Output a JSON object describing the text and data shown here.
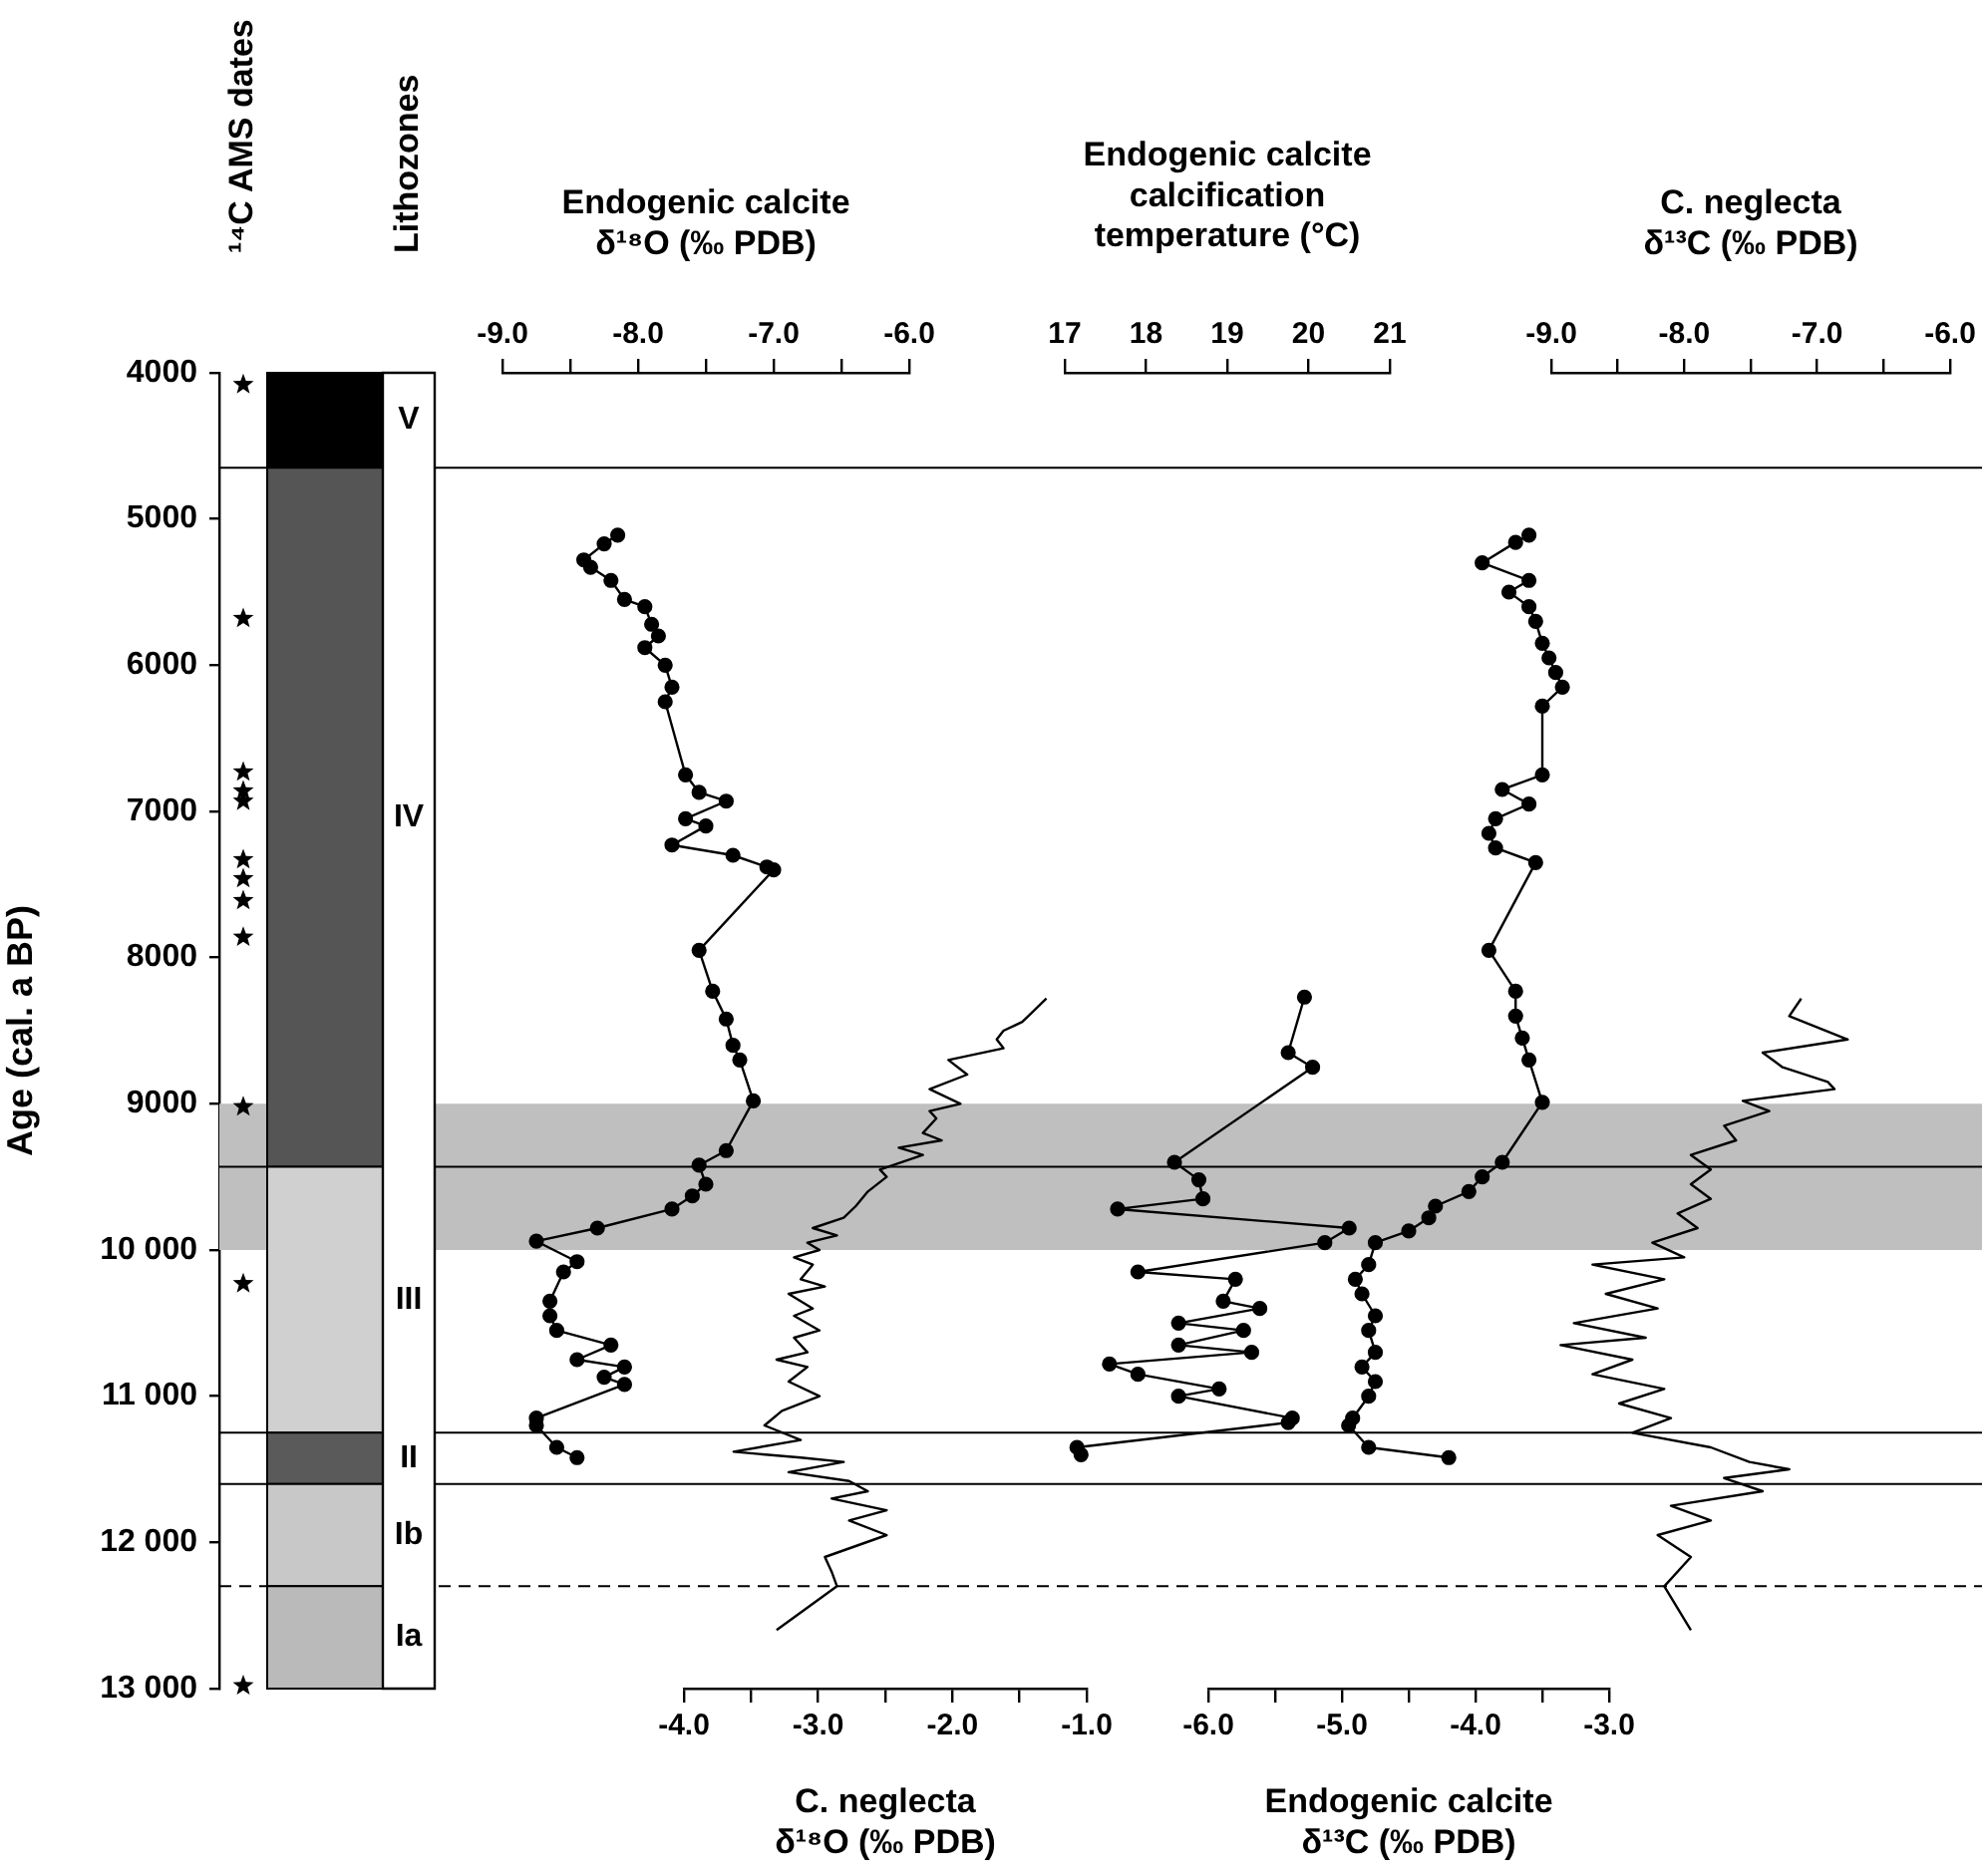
{
  "chart_data": [
    {
      "type": "scatter",
      "marker": "star",
      "categories": [
        "¹⁴C AMS dates"
      ],
      "ylabel": "Age (cal. a BP)",
      "ylim": [
        13000,
        4000
      ],
      "yticks": [
        4000,
        5000,
        6000,
        7000,
        8000,
        9000,
        {
          "value": 10000,
          "label": "10 000"
        },
        {
          "value": 11000,
          "label": "11 000"
        },
        {
          "value": 12000,
          "label": "12 000"
        },
        {
          "value": 13000,
          "label": "13 000"
        }
      ],
      "series": [
        {
          "color": "#000000",
          "x": [
            "¹⁴C AMS dates",
            "¹⁴C AMS dates",
            "¹⁴C AMS dates",
            "¹⁴C AMS dates",
            "¹⁴C AMS dates",
            "¹⁴C AMS dates",
            "¹⁴C AMS dates",
            "¹⁴C AMS dates",
            "¹⁴C AMS dates",
            "¹⁴C AMS dates",
            "¹⁴C AMS dates",
            "¹⁴C AMS dates"
          ],
          "values": [
            4080,
            5680,
            6730,
            6860,
            6930,
            7330,
            7460,
            7610,
            7860,
            9020,
            10230,
            12980
          ]
        }
      ],
      "annotations": [
        "Lithozones"
      ],
      "bands": [
        {
          "axis": "y",
          "from": 4000,
          "to": 4650,
          "label": "V",
          "color": "#000000"
        },
        {
          "axis": "y",
          "from": 4650,
          "to": 9430,
          "label": "IV",
          "color": "#555555"
        },
        {
          "axis": "y",
          "from": 9430,
          "to": 11250,
          "label": "III",
          "color": "#d0d0d0"
        },
        {
          "axis": "y",
          "from": 11250,
          "to": 11600,
          "label": "II",
          "color": "#5a5a5a"
        },
        {
          "axis": "y",
          "from": 11600,
          "to": 12300,
          "label": "Ib",
          "color": "#c8c8c8"
        },
        {
          "axis": "y",
          "from": 12300,
          "to": 13000,
          "label": "Ia",
          "color": "#bababa"
        },
        {
          "axis": "y",
          "from": 9000,
          "to": 10000,
          "color": "#bfbfbf"
        }
      ],
      "ref_lines": [
        {
          "axis": "y",
          "value": 4650
        },
        {
          "axis": "y",
          "value": 9430
        },
        {
          "axis": "y",
          "value": 11250
        },
        {
          "axis": "y",
          "value": 11600
        },
        {
          "axis": "y",
          "value": 12300,
          "line_style": "dashed"
        }
      ]
    },
    {
      "type": "line",
      "orientation": "horizontal",
      "marker": "circle",
      "tick_labels": "x",
      "x2label": "Endogenic calcite\nδ¹⁸O (‰ PDB)",
      "x2lim": [
        -9,
        -6
      ],
      "x2ticks": [
        {
          "value": -9,
          "label": "-9.0"
        },
        {
          "value": -8.5,
          "label": null
        },
        {
          "value": -8,
          "label": "-8.0"
        },
        {
          "value": -7.5,
          "label": null
        },
        {
          "value": -7,
          "label": "-7.0"
        },
        {
          "value": -6.5,
          "label": null
        },
        {
          "value": -6,
          "label": "-6.0"
        }
      ],
      "ylim": [
        13000,
        4000
      ],
      "x": [
        5110,
        5170,
        5280,
        5330,
        5420,
        5550,
        5600,
        5720,
        5800,
        5880,
        6000,
        6150,
        6250,
        6750,
        6870,
        6930,
        7050,
        7100,
        7230,
        7300,
        7380,
        7400,
        7950,
        8230,
        8420,
        8600,
        8700,
        8980,
        9320,
        9420,
        9550,
        9630,
        9720,
        9850,
        9940,
        10080,
        10150,
        10350,
        10450,
        10550,
        10650,
        10750,
        10800,
        10870,
        10920,
        11150,
        11200,
        11350,
        11420
      ],
      "series": [
        {
          "axis": "x2",
          "color": "#000000",
          "values": [
            -8.15,
            -8.25,
            -8.4,
            -8.35,
            -8.2,
            -8.1,
            -7.95,
            -7.9,
            -7.85,
            -7.95,
            -7.8,
            -7.75,
            -7.8,
            -7.65,
            -7.55,
            -7.35,
            -7.65,
            -7.5,
            -7.75,
            -7.3,
            -7.05,
            -7.0,
            -7.55,
            -7.45,
            -7.35,
            -7.3,
            -7.25,
            -7.15,
            -7.35,
            -7.55,
            -7.5,
            -7.6,
            -7.75,
            -8.3,
            -8.75,
            -8.45,
            -8.55,
            -8.65,
            -8.65,
            -8.6,
            -8.2,
            -8.45,
            -8.1,
            -8.25,
            -8.1,
            -8.75,
            -8.75,
            -8.6,
            -8.45
          ]
        }
      ]
    },
    {
      "type": "line",
      "orientation": "horizontal",
      "marker": "none",
      "tick_labels": "x",
      "xlabel": "C. neglecta\nδ¹⁸O (‰ PDB)",
      "xlim": [
        -4,
        -1
      ],
      "xticks": [
        {
          "value": -4,
          "label": "-4.0"
        },
        {
          "value": -3.5,
          "label": null
        },
        {
          "value": -3,
          "label": "-3.0"
        },
        {
          "value": -2.5,
          "label": null
        },
        {
          "value": -2,
          "label": "-2.0"
        },
        {
          "value": -1.5,
          "label": null
        },
        {
          "value": -1,
          "label": "-1.0"
        }
      ],
      "ylim": [
        13000,
        4000
      ],
      "x": [
        8280,
        8440,
        8500,
        8560,
        8620,
        8700,
        8800,
        8900,
        9000,
        9050,
        9100,
        9200,
        9250,
        9300,
        9350,
        9450,
        9500,
        9600,
        9700,
        9780,
        9850,
        9900,
        9950,
        10000,
        10050,
        10100,
        10200,
        10250,
        10300,
        10400,
        10450,
        10550,
        10600,
        10700,
        10750,
        10800,
        10900,
        11000,
        11100,
        11200,
        11300,
        11380,
        11420,
        11450,
        11520,
        11580,
        11650,
        11700,
        11780,
        11850,
        11950,
        12100,
        12200,
        12300,
        12600
      ],
      "series": [
        {
          "color": "#000000",
          "values": [
            -1.3,
            -1.48,
            -1.62,
            -1.67,
            -1.62,
            -2.03,
            -1.89,
            -2.17,
            -1.94,
            -2.17,
            -2.12,
            -2.22,
            -2.08,
            -2.4,
            -2.22,
            -2.54,
            -2.49,
            -2.63,
            -2.72,
            -2.81,
            -3.04,
            -2.86,
            -3.08,
            -2.99,
            -3.18,
            -3.04,
            -3.13,
            -2.95,
            -3.22,
            -3.04,
            -3.18,
            -2.99,
            -3.18,
            -3.08,
            -3.31,
            -3.08,
            -3.22,
            -2.99,
            -3.27,
            -3.4,
            -3.13,
            -3.63,
            -3.13,
            -2.81,
            -3.22,
            -2.77,
            -2.63,
            -2.9,
            -2.49,
            -2.77,
            -2.49,
            -2.95,
            -2.9,
            -2.86,
            -3.31
          ]
        }
      ]
    },
    {
      "type": "line",
      "orientation": "horizontal",
      "marker": "circle",
      "tick_labels": "x",
      "x2label": "Endogenic calcite\ncalcification\ntemperature (°C)",
      "x2lim": [
        17,
        21
      ],
      "x2ticks": [
        17,
        18,
        19,
        20,
        21
      ],
      "ylim": [
        13000,
        4000
      ],
      "x": [
        8270,
        8650,
        8750,
        9400,
        9520,
        9650,
        9720,
        9850,
        9950,
        10150,
        10200,
        10350,
        10400,
        10500,
        10550,
        10650,
        10700,
        10780,
        10850,
        10950,
        11000,
        11150,
        11180,
        11350,
        11400
      ],
      "series": [
        {
          "axis": "x2",
          "color": "#000000",
          "values": [
            19.95,
            19.75,
            20.05,
            18.35,
            18.65,
            18.7,
            17.65,
            20.5,
            20.2,
            17.9,
            19.1,
            18.95,
            19.4,
            18.4,
            19.2,
            18.4,
            19.3,
            17.55,
            17.9,
            18.9,
            18.4,
            19.8,
            19.75,
            17.15,
            17.2
          ]
        }
      ]
    },
    {
      "type": "line",
      "orientation": "horizontal",
      "marker": "circle",
      "tick_labels": "x",
      "xlabel": "Endogenic calcite\nδ¹³C (‰ PDB)",
      "xlim": [
        -6,
        -3
      ],
      "xticks": [
        {
          "value": -6,
          "label": "-6.0"
        },
        {
          "value": -5.5,
          "label": null
        },
        {
          "value": -5,
          "label": "-5.0"
        },
        {
          "value": -4.5,
          "label": null
        },
        {
          "value": -4,
          "label": "-4.0"
        },
        {
          "value": -3.5,
          "label": null
        },
        {
          "value": -3,
          "label": "-3.0"
        }
      ],
      "ylim": [
        13000,
        4000
      ],
      "x": [
        5110,
        5160,
        5300,
        5420,
        5500,
        5600,
        5700,
        5850,
        5950,
        6050,
        6150,
        6280,
        6750,
        6850,
        6950,
        7050,
        7150,
        7250,
        7350,
        7950,
        8230,
        8400,
        8550,
        8700,
        8990,
        9400,
        9500,
        9600,
        9700,
        9780,
        9870,
        9950,
        10100,
        10200,
        10300,
        10450,
        10550,
        10700,
        10800,
        10900,
        11000,
        11150,
        11200,
        11350,
        11420
      ],
      "series": [
        {
          "color": "#000000",
          "values": [
            -3.6,
            -3.7,
            -3.95,
            -3.6,
            -3.75,
            -3.6,
            -3.55,
            -3.5,
            -3.45,
            -3.4,
            -3.35,
            -3.5,
            -3.5,
            -3.8,
            -3.6,
            -3.85,
            -3.9,
            -3.85,
            -3.55,
            -3.9,
            -3.7,
            -3.7,
            -3.65,
            -3.6,
            -3.5,
            -3.8,
            -3.95,
            -4.05,
            -4.3,
            -4.35,
            -4.5,
            -4.75,
            -4.8,
            -4.9,
            -4.85,
            -4.75,
            -4.8,
            -4.75,
            -4.85,
            -4.75,
            -4.8,
            -4.92,
            -4.95,
            -4.8,
            -4.2
          ]
        }
      ]
    },
    {
      "type": "line",
      "orientation": "horizontal",
      "marker": "none",
      "tick_labels": "x",
      "x2label": "C. neglecta\nδ¹³C (‰ PDB)",
      "x2lim": [
        -9,
        -6
      ],
      "x2ticks": [
        {
          "value": -9,
          "label": "-9.0"
        },
        {
          "value": -8.5,
          "label": null
        },
        {
          "value": -8,
          "label": "-8.0"
        },
        {
          "value": -7.5,
          "label": null
        },
        {
          "value": -7,
          "label": "-7.0"
        },
        {
          "value": -6.5,
          "label": null
        },
        {
          "value": -6,
          "label": "-6.0"
        }
      ],
      "ylim": [
        13000,
        4000
      ],
      "x": [
        8280,
        8400,
        8560,
        8650,
        8750,
        8850,
        8900,
        8980,
        9050,
        9150,
        9250,
        9350,
        9450,
        9550,
        9650,
        9750,
        9850,
        9950,
        10050,
        10100,
        10200,
        10300,
        10400,
        10500,
        10600,
        10650,
        10750,
        10850,
        10950,
        11050,
        11150,
        11250,
        11350,
        11450,
        11500,
        11560,
        11650,
        11750,
        11850,
        11950,
        12100,
        12300,
        12600
      ],
      "series": [
        {
          "axis": "x2",
          "color": "#000000",
          "values": [
            -7.12,
            -7.21,
            -6.77,
            -7.41,
            -7.26,
            -6.92,
            -6.87,
            -7.56,
            -7.36,
            -7.7,
            -7.61,
            -7.95,
            -7.8,
            -7.95,
            -7.8,
            -8.05,
            -7.9,
            -8.24,
            -8.0,
            -8.69,
            -8.15,
            -8.59,
            -8.2,
            -8.83,
            -8.29,
            -8.93,
            -8.39,
            -8.69,
            -8.15,
            -8.49,
            -8.1,
            -8.39,
            -7.8,
            -7.51,
            -7.21,
            -7.7,
            -7.41,
            -8.1,
            -7.8,
            -8.2,
            -7.95,
            -8.15,
            -7.95
          ]
        }
      ]
    }
  ]
}
